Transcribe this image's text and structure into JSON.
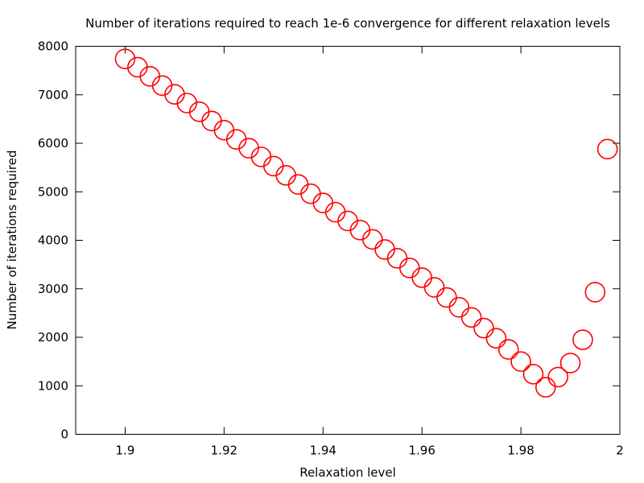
{
  "chart_data": {
    "type": "scatter",
    "title": "Number of iterations required to reach 1e-6 convergence for different relaxation levels",
    "xlabel": "Relaxation level",
    "ylabel": "Number of iterations required",
    "xlim": [
      1.89,
      2.0
    ],
    "ylim": [
      0,
      8000
    ],
    "xticks": [
      1.9,
      1.92,
      1.94,
      1.96,
      1.98,
      2.0
    ],
    "xtick_labels": [
      "1.9",
      "1.92",
      "1.94",
      "1.96",
      "1.98",
      "2"
    ],
    "yticks": [
      0,
      1000,
      2000,
      3000,
      4000,
      5000,
      6000,
      7000,
      8000
    ],
    "ytick_labels": [
      "0",
      "1000",
      "2000",
      "3000",
      "4000",
      "5000",
      "6000",
      "7000",
      "8000"
    ],
    "grid": false,
    "marker": "open-circle",
    "marker_color": "#ff0000",
    "x": [
      1.9,
      1.9025,
      1.905,
      1.9075,
      1.91,
      1.9125,
      1.915,
      1.9175,
      1.92,
      1.9225,
      1.925,
      1.9275,
      1.93,
      1.9325,
      1.935,
      1.9375,
      1.94,
      1.9425,
      1.945,
      1.9475,
      1.95,
      1.9525,
      1.955,
      1.9575,
      1.96,
      1.9625,
      1.965,
      1.9675,
      1.97,
      1.9725,
      1.975,
      1.9775,
      1.98,
      1.9825,
      1.985,
      1.9875,
      1.99,
      1.9925,
      1.995,
      1.9975
    ],
    "y": [
      7740,
      7570,
      7380,
      7190,
      7010,
      6830,
      6650,
      6460,
      6270,
      6080,
      5900,
      5720,
      5530,
      5340,
      5150,
      4960,
      4770,
      4580,
      4400,
      4210,
      4020,
      3810,
      3630,
      3430,
      3230,
      3030,
      2820,
      2620,
      2410,
      2190,
      1980,
      1750,
      1500,
      1240,
      970,
      1180,
      1470,
      1950,
      2930,
      5880
    ]
  }
}
